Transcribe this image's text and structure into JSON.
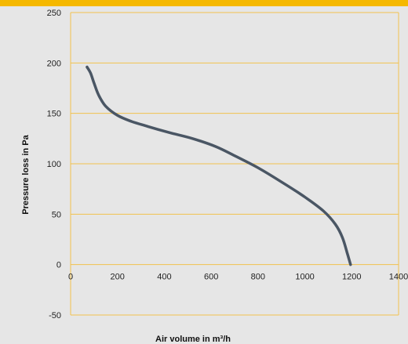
{
  "chart_data": {
    "type": "line",
    "title": "",
    "xlabel": "Air volume in m³/h",
    "ylabel": "Pressure loss in Pa",
    "xlim": [
      0,
      1400
    ],
    "ylim": [
      -50,
      250
    ],
    "xticks": [
      0,
      200,
      400,
      600,
      800,
      1000,
      1200,
      1400
    ],
    "yticks": [
      -50,
      0,
      50,
      100,
      150,
      200,
      250
    ],
    "grid": true,
    "legend": "none",
    "series": [
      {
        "x": [
          70,
          85,
          100,
          120,
          150,
          200,
          260,
          330,
          420,
          520,
          620,
          700,
          800,
          900,
          1000,
          1080,
          1130,
          1160,
          1180,
          1195
        ],
        "y": [
          196,
          190,
          180,
          168,
          157,
          148,
          142,
          137,
          131,
          125,
          117,
          108,
          96,
          82,
          67,
          53,
          40,
          27,
          12,
          0
        ]
      }
    ]
  },
  "colors": {
    "background": "#e6e6e6",
    "grid": "#f2c14e",
    "axis_frame": "#f2c14e",
    "line": "#4a5664",
    "top_band": "#f5b800"
  }
}
